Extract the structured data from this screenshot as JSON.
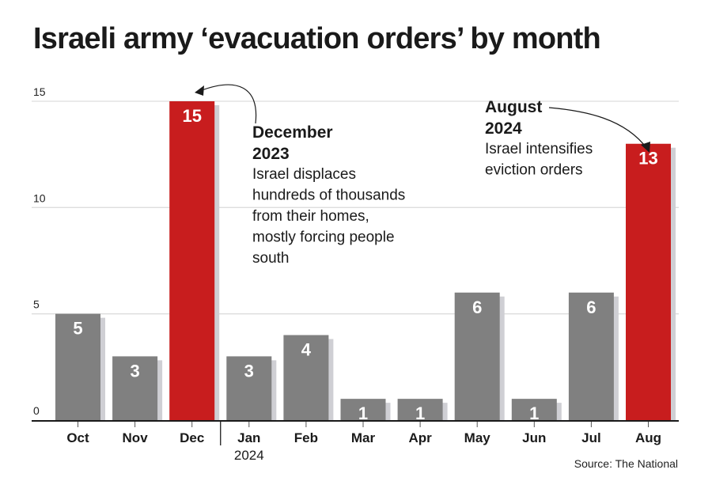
{
  "title": "Israeli army ‘evacuation orders’ by month",
  "source": "Source: The National",
  "colors": {
    "default_bar": "#808080",
    "highlight_bar": "#c81d1e",
    "bar_shadow": "#cfcfd4",
    "gridline": "#dddddd",
    "axis": "#1a1a1a"
  },
  "chart_data": {
    "type": "bar",
    "title": "Israeli army ‘evacuation orders’ by month",
    "xlabel": "",
    "ylabel": "",
    "categories": [
      "Oct",
      "Nov",
      "Dec",
      "Jan",
      "Feb",
      "Mar",
      "Apr",
      "May",
      "Jun",
      "Jul",
      "Aug"
    ],
    "category_sublabels": [
      "",
      "",
      "",
      "2024",
      "",
      "",
      "",
      "",
      "",
      "",
      ""
    ],
    "values": [
      5,
      3,
      15,
      3,
      4,
      1,
      1,
      6,
      1,
      6,
      13
    ],
    "highlighted": [
      "Dec",
      "Aug"
    ],
    "ylim": [
      0,
      15
    ],
    "yticks": [
      0,
      5,
      10,
      15
    ],
    "grid": true,
    "legend": "none",
    "year_divider_between": [
      "Dec",
      "Jan"
    ],
    "annotations": [
      {
        "target": "Dec",
        "heading_lines": [
          "December",
          "2023"
        ],
        "body_lines": [
          "Israel displaces",
          "hundreds of thousands",
          "from their homes,",
          "mostly forcing people",
          "south"
        ]
      },
      {
        "target": "Aug",
        "heading_lines": [
          "August",
          "2024"
        ],
        "body_lines": [
          "Israel intensifies",
          "eviction orders"
        ]
      }
    ]
  }
}
